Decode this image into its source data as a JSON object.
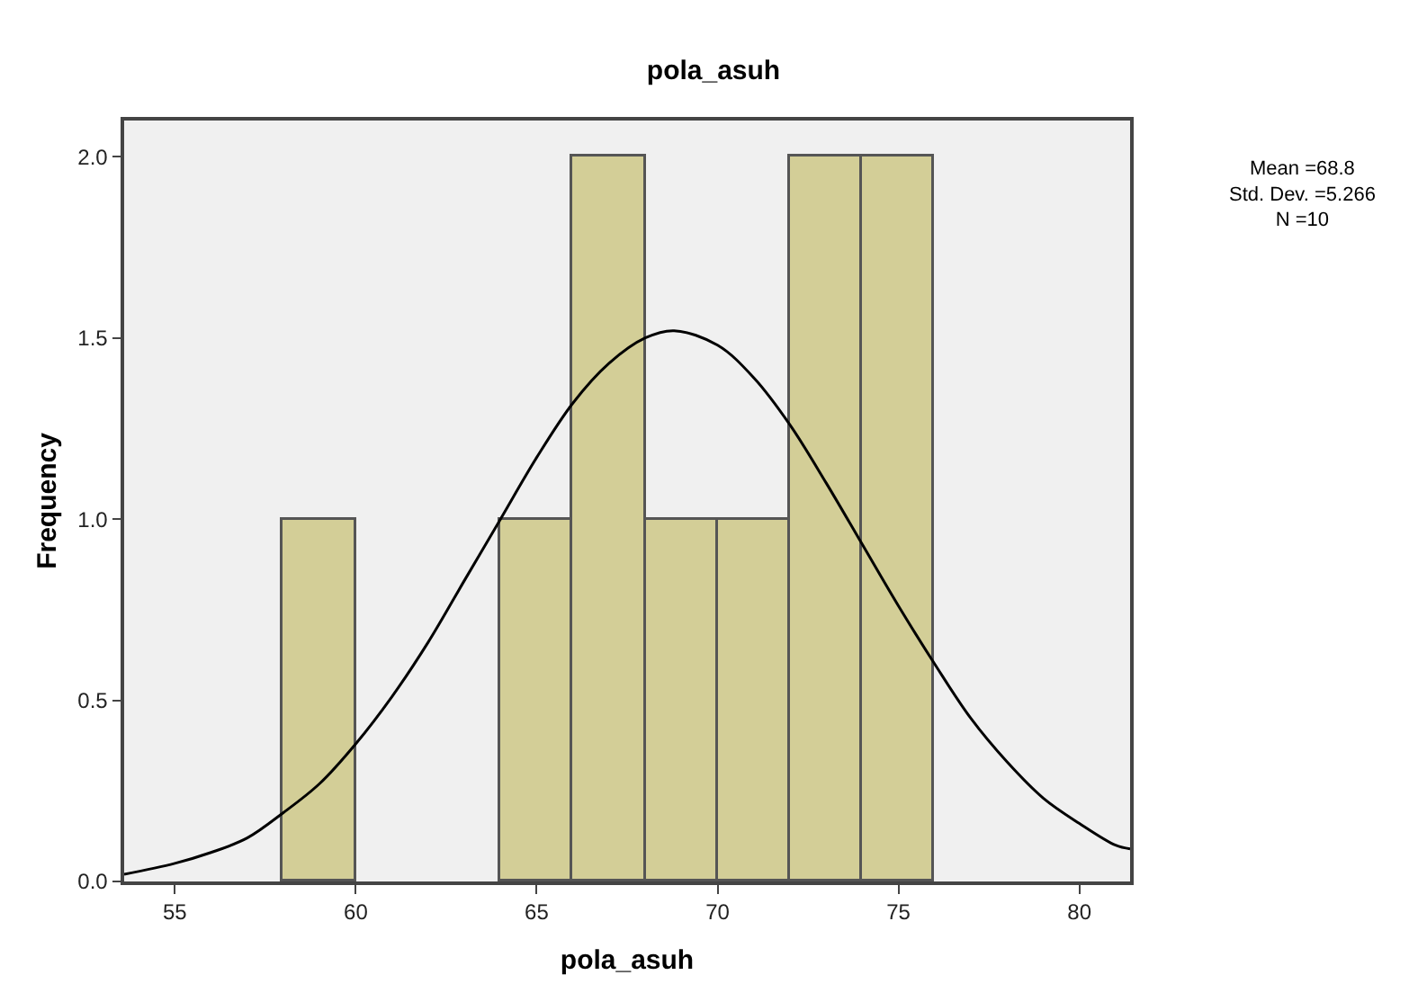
{
  "chart_data": {
    "type": "histogram",
    "title": "pola_asuh",
    "xlabel": "pola_asuh",
    "ylabel": "Frequency",
    "bins": [
      58,
      60,
      62,
      64,
      66,
      68,
      70,
      72,
      74,
      76
    ],
    "values": [
      1,
      0,
      0,
      1,
      2,
      1,
      1,
      2,
      2
    ],
    "color": "#d3ce97",
    "series": [
      {
        "type": "line",
        "color": "#000000",
        "x": [
          53.6,
          55,
          56,
          57,
          58,
          59,
          60,
          61,
          62,
          63,
          64,
          65,
          66,
          67,
          68,
          68.8,
          70,
          71,
          72,
          73,
          74,
          75,
          76,
          77,
          78,
          79,
          80,
          81,
          81.4
        ],
        "values": [
          0.02,
          0.05,
          0.08,
          0.12,
          0.19,
          0.27,
          0.38,
          0.51,
          0.66,
          0.83,
          1.0,
          1.17,
          1.32,
          1.43,
          1.5,
          1.52,
          1.48,
          1.39,
          1.26,
          1.1,
          0.93,
          0.76,
          0.6,
          0.45,
          0.33,
          0.23,
          0.16,
          0.1,
          0.09
        ]
      }
    ],
    "xlim": [
      53.6,
      81.4
    ],
    "xticks": [
      55,
      60,
      65,
      70,
      75,
      80
    ],
    "ylim": [
      0,
      2.1
    ],
    "yticks": [
      {
        "value": 0,
        "label": "0.0"
      },
      {
        "value": 0.5,
        "label": "0.5"
      },
      {
        "value": 1,
        "label": "1.0"
      },
      {
        "value": 1.5,
        "label": "1.5"
      },
      {
        "value": 2,
        "label": "2.0"
      }
    ],
    "marker": "none",
    "line_style": "solid",
    "annotations": [
      "Mean =68.8\nStd. Dev. =5.266\nN =10"
    ]
  }
}
